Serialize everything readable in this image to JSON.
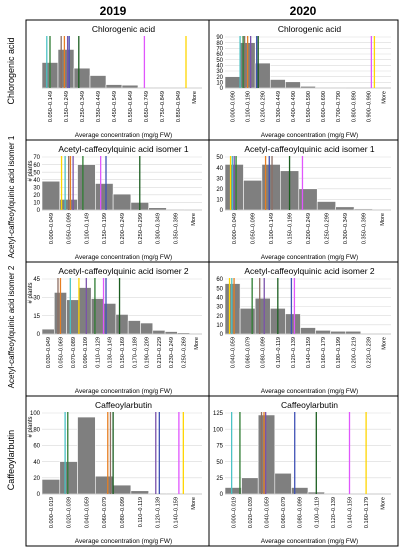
{
  "headers": {
    "col1": "2019",
    "col2": "2020"
  },
  "row_labels": [
    "Chlorogenic acid",
    "Acetyl-caffeoylquinic acid isomer 1",
    "Acetyl-caffeoylquinic acid isomer 2",
    "Caffeoylarbutin"
  ],
  "colors": {
    "bar": "#7f7f7f",
    "bar_edge": "#ffffff",
    "grid": "#d9d9d9",
    "markers": [
      "#4bc2c5",
      "#2e7d32",
      "#8d6e63",
      "#e67e22",
      "#7b52ab",
      "#3f51b5",
      "#1b5e20",
      "#e056fd",
      "#ffd600"
    ]
  },
  "chart_data": [
    {
      "type": "bar",
      "id": "c2019-1",
      "title": "Chlorogenic acid",
      "xlabel": "Average concentration (mg/g FW)",
      "ylabel": "",
      "ylim": [
        0,
        90
      ],
      "yticks": [],
      "categories": [
        "0.050–0.149",
        "0.150–0.249",
        "0.250–0.349",
        "0.350–0.449",
        "0.450–0.549",
        "0.550–0.649",
        "0.650–0.749",
        "0.750–0.849",
        "0.850–0.949",
        "More"
      ],
      "tick_labels": [
        "0.050–0.149",
        "0.150–0.249",
        "0.250–0.349",
        "0.350–0.449",
        "0.450–0.549",
        "0.550–0.649",
        "0.650–0.749",
        "0.750–0.849",
        "0.850–0.949",
        "More"
      ],
      "values": [
        45,
        68,
        35,
        22,
        6,
        5,
        1,
        1,
        1,
        0
      ],
      "markers": [
        {
          "color": "#4bc2c5",
          "x": 0.3
        },
        {
          "color": "#2e7d32",
          "x": 0.5
        },
        {
          "color": "#8d6e63",
          "x": 1.2
        },
        {
          "color": "#e67e22",
          "x": 1.4
        },
        {
          "color": "#7b52ab",
          "x": 1.6
        },
        {
          "color": "#3f51b5",
          "x": 1.7
        },
        {
          "color": "#1b5e20",
          "x": 2.3
        },
        {
          "color": "#e056fd",
          "x": 6.4
        },
        {
          "color": "#ffd600",
          "x": 9.0
        }
      ]
    },
    {
      "type": "bar",
      "id": "c2020-1",
      "title": "Chlorogenic acid",
      "xlabel": "Average concentration (mg/g FW)",
      "ylabel": "",
      "ylim": [
        0,
        90
      ],
      "yticks": [
        0,
        10,
        20,
        30,
        40,
        50,
        60,
        70,
        80,
        90
      ],
      "categories": [
        "0.000–0.090",
        "0.100–0.190",
        "0.200–0.290",
        "0.300–0.449",
        "0.400–0.490",
        "0.500–0.590",
        "0.600–0.690",
        "0.700–0.790",
        "0.800–0.890",
        "0.900–0.990",
        "More"
      ],
      "tick_labels": [
        "0.000–0.090",
        "0.100–0.190",
        "0.200–0.290",
        "0.300–0.449",
        "0.400–0.490",
        "0.500–0.590",
        "0.600–0.690",
        "0.700–0.790",
        "0.800–0.890",
        "0.900–0.990",
        "More"
      ],
      "values": [
        20,
        80,
        44,
        15,
        11,
        3,
        1,
        1,
        0,
        0,
        0
      ],
      "markers": [
        {
          "color": "#4bc2c5",
          "x": 1.0
        },
        {
          "color": "#2e7d32",
          "x": 1.2
        },
        {
          "color": "#8d6e63",
          "x": 1.3
        },
        {
          "color": "#e67e22",
          "x": 1.5
        },
        {
          "color": "#7b52ab",
          "x": 1.7
        },
        {
          "color": "#3f51b5",
          "x": 2.1
        },
        {
          "color": "#1b5e20",
          "x": 2.2
        },
        {
          "color": "#e056fd",
          "x": 9.7
        },
        {
          "color": "#ffd600",
          "x": 9.9
        }
      ]
    },
    {
      "type": "bar",
      "id": "c2019-2",
      "title": "Acetyl-caffeoylquinic acid isomer 1",
      "xlabel": "Average concentration (mg/g FW)",
      "ylabel": "# plants",
      "ylim": [
        0,
        70
      ],
      "yticks": [
        0,
        10,
        20,
        30,
        40,
        50,
        60,
        70
      ],
      "categories": [
        "0.000–0.049",
        "0.050–0.099",
        "0.100–0.149",
        "0.150–0.199",
        "0.200–0.249",
        "0.250–0.299",
        "0.300–0.349",
        "0.350–0.399",
        "More"
      ],
      "tick_labels": [
        "0.000–0.049",
        "0.050–0.099",
        "0.100–0.149",
        "0.150–0.199",
        "0.200–0.249",
        "0.250–0.299",
        "0.300–0.349",
        "0.350–0.399",
        "More"
      ],
      "values": [
        38,
        14,
        60,
        35,
        21,
        10,
        3,
        1,
        0
      ],
      "markers": [
        {
          "color": "#ffd600",
          "x": 1.1
        },
        {
          "color": "#4bc2c5",
          "x": 1.3
        },
        {
          "color": "#8d6e63",
          "x": 1.5
        },
        {
          "color": "#e67e22",
          "x": 1.6
        },
        {
          "color": "#7b52ab",
          "x": 1.75
        },
        {
          "color": "#2e7d32",
          "x": 2.3
        },
        {
          "color": "#e056fd",
          "x": 3.3
        },
        {
          "color": "#3f51b5",
          "x": 3.6
        },
        {
          "color": "#1b5e20",
          "x": 5.5
        }
      ]
    },
    {
      "type": "bar",
      "id": "c2020-2",
      "title": "Acetyl-caffeoylquinic acid isomer 1",
      "xlabel": "Average concentration (mg/g FW)",
      "ylabel": "",
      "ylim": [
        0,
        50
      ],
      "yticks": [
        0,
        10,
        20,
        30,
        40,
        50
      ],
      "categories": [
        "0.000–0.049",
        "0.050–0.099",
        "0.100–0.149",
        "0.150–0.199",
        "0.200–0.249",
        "0.250–0.299",
        "0.300–0.349",
        "0.350–0.399",
        "More"
      ],
      "tick_labels": [
        "0.000–0.049",
        "0.050–0.099",
        "0.100–0.149",
        "0.150–0.199",
        "0.200–0.249",
        "0.250–0.299",
        "0.300–0.349",
        "0.350–0.399",
        "More"
      ],
      "values": [
        43,
        28,
        43,
        37,
        20,
        8,
        3,
        1,
        0
      ],
      "markers": [
        {
          "color": "#ffd600",
          "x": 0.3
        },
        {
          "color": "#4bc2c5",
          "x": 0.4
        },
        {
          "color": "#7b52ab",
          "x": 0.5
        },
        {
          "color": "#2e7d32",
          "x": 0.6
        },
        {
          "color": "#e67e22",
          "x": 2.2
        },
        {
          "color": "#3f51b5",
          "x": 2.4
        },
        {
          "color": "#8d6e63",
          "x": 2.55
        },
        {
          "color": "#1b5e20",
          "x": 3.5
        },
        {
          "color": "#e056fd",
          "x": 4.2
        }
      ]
    },
    {
      "type": "bar",
      "id": "c2019-3",
      "title": "Acetyl-caffeoylquinic acid isomer 2",
      "xlabel": "Average concentration (mg/g FW)",
      "ylabel": "# plants",
      "ylim": [
        0,
        45
      ],
      "yticks": [
        0,
        15,
        30,
        45
      ],
      "categories": [
        "0.030–0.049",
        "0.050–0.069",
        "0.070–0.089",
        "0.090–0.109",
        "0.110–0.129",
        "0.130–0.149",
        "0.150–0.169",
        "0.170–0.189",
        "0.190–0.209",
        "0.210–0.229",
        "0.230–0.249",
        "0.250–0.269",
        "More"
      ],
      "tick_labels": [
        "0.030–0.049",
        "0.050–0.069",
        "0.070–0.089",
        "0.090–0.109",
        "0.110–0.129",
        "0.130–0.149",
        "0.150–0.169",
        "0.170–0.189",
        "0.190–0.209",
        "0.210–0.229",
        "0.230–0.249",
        "0.250–0.269",
        "More"
      ],
      "values": [
        4,
        34,
        28,
        38,
        29,
        25,
        16,
        11,
        9,
        3,
        2,
        1,
        0
      ],
      "markers": [
        {
          "color": "#8d6e63",
          "x": 1.3
        },
        {
          "color": "#e67e22",
          "x": 1.5
        },
        {
          "color": "#4bc2c5",
          "x": 2.3
        },
        {
          "color": "#ffd600",
          "x": 3.0
        },
        {
          "color": "#7b52ab",
          "x": 3.6
        },
        {
          "color": "#2e7d32",
          "x": 4.3
        },
        {
          "color": "#e056fd",
          "x": 5.0
        },
        {
          "color": "#3f51b5",
          "x": 5.2
        },
        {
          "color": "#1b5e20",
          "x": 6.3
        }
      ]
    },
    {
      "type": "bar",
      "id": "c2020-3",
      "title": "Acetyl-caffeoylquinic acid isomer 2",
      "xlabel": "Average concentration (mg/g FW)",
      "ylabel": "",
      "ylim": [
        0,
        60
      ],
      "yticks": [
        0,
        10,
        20,
        30,
        40,
        50,
        60
      ],
      "categories": [
        "0.040–0.059",
        "0.060–0.079",
        "0.080–0.099",
        "0.100–0.119",
        "0.120–0.139",
        "0.140–0.159",
        "0.160–0.179",
        "0.180–0.199",
        "0.200–0.219",
        "0.220–0.239",
        "More"
      ],
      "tick_labels": [
        "0.040–0.059",
        "0.060–0.079",
        "0.080–0.099",
        "0.100–0.119",
        "0.120–0.139",
        "0.140–0.159",
        "0.160–0.179",
        "0.180–0.199",
        "0.200–0.219",
        "0.220–0.239",
        "More"
      ],
      "values": [
        55,
        28,
        39,
        28,
        22,
        7,
        4,
        3,
        3,
        0,
        0
      ],
      "markers": [
        {
          "color": "#ffd600",
          "x": 0.3
        },
        {
          "color": "#4bc2c5",
          "x": 0.45
        },
        {
          "color": "#e67e22",
          "x": 0.6
        },
        {
          "color": "#2e7d32",
          "x": 1.8
        },
        {
          "color": "#8d6e63",
          "x": 2.3
        },
        {
          "color": "#7b52ab",
          "x": 2.6
        },
        {
          "color": "#1b5e20",
          "x": 3.5
        },
        {
          "color": "#3f51b5",
          "x": 4.4
        },
        {
          "color": "#e056fd",
          "x": 4.6
        }
      ]
    },
    {
      "type": "bar",
      "id": "c2019-4",
      "title": "Caffeoylarbutin",
      "xlabel": "Average concentration (mg/g FW)",
      "ylabel": "# plants",
      "ylim": [
        0,
        100
      ],
      "yticks": [
        0,
        20,
        40,
        60,
        80,
        100
      ],
      "categories": [
        "0.000–0.019",
        "0.020–0.039",
        "0.040–0.059",
        "0.060–0.079",
        "0.080–0.099",
        "0.110–0.119",
        "0.120–0.139",
        "0.140–0.159",
        "More"
      ],
      "tick_labels": [
        "0.000–0.019",
        "0.020–0.039",
        "0.040–0.059",
        "0.060–0.079",
        "0.080–0.099",
        "0.110–0.119",
        "0.120–0.139",
        "0.140–0.159",
        "More"
      ],
      "values": [
        18,
        40,
        95,
        22,
        11,
        4,
        1,
        1,
        0
      ],
      "markers": [
        {
          "color": "#4bc2c5",
          "x": 1.3
        },
        {
          "color": "#2e7d32",
          "x": 1.45
        },
        {
          "color": "#e67e22",
          "x": 3.7
        },
        {
          "color": "#8d6e63",
          "x": 3.85
        },
        {
          "color": "#1b5e20",
          "x": 4.0
        },
        {
          "color": "#7b52ab",
          "x": 6.4
        },
        {
          "color": "#3f51b5",
          "x": 6.6
        },
        {
          "color": "#e056fd",
          "x": 7.7
        },
        {
          "color": "#ffd600",
          "x": 7.95
        }
      ]
    },
    {
      "type": "bar",
      "id": "c2020-4",
      "title": "Caffeoylarbutin",
      "xlabel": "Average concentration (mg/g FW)",
      "ylabel": "",
      "ylim": [
        0,
        125
      ],
      "yticks": [
        0,
        25,
        50,
        75,
        100,
        125
      ],
      "categories": [
        "0.000–0.019",
        "0.020–0.039",
        "0.040–0.059",
        "0.060–0.079",
        "0.080–0.099",
        "0.100–0.119",
        "0.120–0.139",
        "0.140–0.159",
        "0.160–0.179",
        "More"
      ],
      "tick_labels": [
        "0.000–0.019",
        "0.020–0.039",
        "0.040–0.059",
        "0.060–0.079",
        "0.080–0.099",
        "0.100–0.119",
        "0.120–0.139",
        "0.140–0.159",
        "0.160–0.179",
        "More"
      ],
      "values": [
        10,
        25,
        122,
        32,
        10,
        3,
        1,
        0,
        0,
        0
      ],
      "markers": [
        {
          "color": "#4bc2c5",
          "x": 0.4
        },
        {
          "color": "#2e7d32",
          "x": 0.9
        },
        {
          "color": "#8d6e63",
          "x": 2.2
        },
        {
          "color": "#e67e22",
          "x": 2.35
        },
        {
          "color": "#7b52ab",
          "x": 2.45
        },
        {
          "color": "#3f51b5",
          "x": 4.2
        },
        {
          "color": "#1b5e20",
          "x": 5.5
        },
        {
          "color": "#e056fd",
          "x": 7.5
        },
        {
          "color": "#ffd600",
          "x": 8.5
        }
      ]
    }
  ]
}
